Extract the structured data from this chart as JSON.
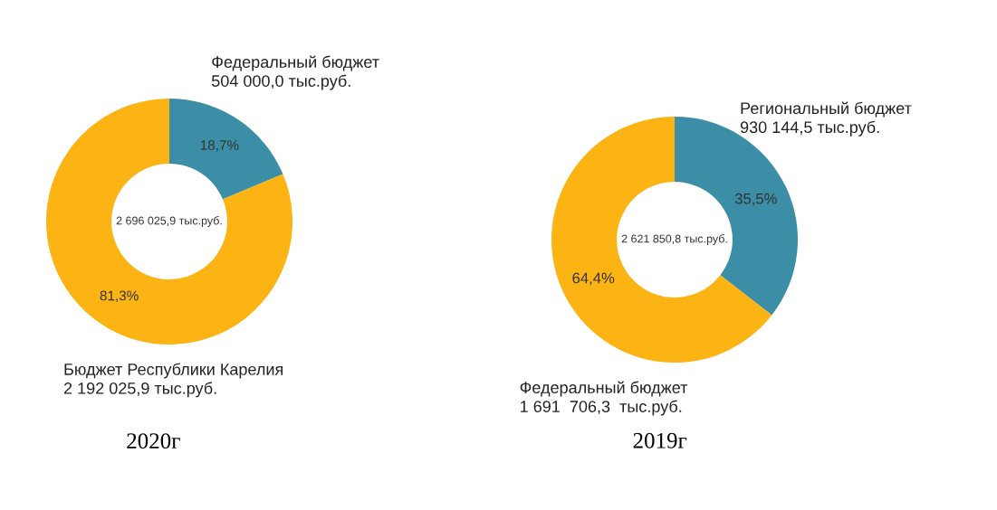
{
  "chart_data": [
    {
      "type": "donut",
      "title": "2020г",
      "categories": [
        "Федеральный бюджет\n504 000,0 тыс.руб.",
        "Бюджет Республики Карелия\n2 192 025,9 тыс.руб."
      ],
      "values": [
        18.7,
        81.3
      ],
      "colors": [
        "#3b8ea5",
        "#fbb413"
      ],
      "value_labels": [
        "18,7%",
        "81,3%"
      ],
      "annotations": [
        "2 696 025,9 тыс.руб."
      ]
    },
    {
      "type": "donut",
      "title": "2019г",
      "categories": [
        "Региональный бюджет\n930 144,5 тыс.руб.",
        "Федеральный бюджет\n1 691  706,3  тыс.руб."
      ],
      "values": [
        35.5,
        64.4
      ],
      "colors": [
        "#3b8ea5",
        "#fbb413"
      ],
      "value_labels": [
        "35,5%",
        "64,4%"
      ],
      "annotations": [
        "2 621 850,8 тыс.руб."
      ]
    }
  ]
}
